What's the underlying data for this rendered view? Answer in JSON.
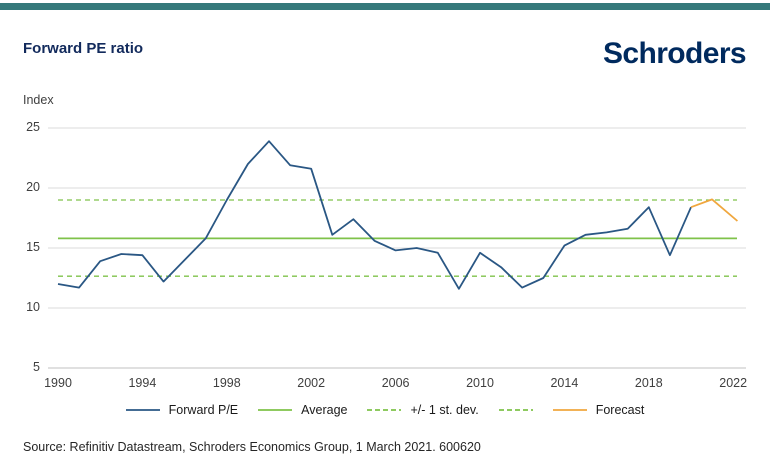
{
  "page": {
    "background": "#FFFFFF",
    "accent_bar_color": "#35797B"
  },
  "header": {
    "title": "Forward PE ratio",
    "title_color": "#122A5C",
    "logo_text": "Schroders",
    "logo_color": "#002A5E"
  },
  "footer": {
    "source": "Source: Refinitiv Datastream, Schroders Economics Group, 1 March 2021. 600620",
    "text_color": "#262626"
  },
  "colors": {
    "gridline": "#DBDBDB",
    "axis_line": "#C2C2C2",
    "tick_text": "#3F3F3F",
    "forward_pe_blue": "#2A5784",
    "average_green": "#7FC24A",
    "forecast_orange": "#F0A73E"
  },
  "chart_data": {
    "type": "line",
    "title": "Forward PE ratio",
    "ylabel": "Index",
    "xlabel": "",
    "ylim": [
      5,
      25
    ],
    "xlim": [
      1989.5,
      2023
    ],
    "grid": "horizontal",
    "legend_position": "bottom",
    "y_ticks": [
      25,
      20,
      15,
      10,
      5
    ],
    "x_ticks": [
      1990,
      1994,
      1998,
      2002,
      2006,
      2010,
      2014,
      2018,
      2022
    ],
    "series": [
      {
        "name": "Forward P/E",
        "style": "solid",
        "color": "#2A5784",
        "x": [
          1990,
          1991,
          1992,
          1993,
          1994,
          1995,
          1996,
          1997,
          1998,
          1999,
          2000,
          2001,
          2002,
          2003,
          2004,
          2005,
          2006,
          2007,
          2008,
          2009,
          2010,
          2011,
          2012,
          2013,
          2014,
          2015,
          2016,
          2017,
          2018,
          2019,
          2020
        ],
        "values": [
          12.0,
          11.7,
          13.9,
          14.5,
          14.4,
          12.2,
          14.0,
          15.8,
          19.0,
          22.0,
          23.9,
          21.9,
          21.6,
          16.1,
          17.4,
          15.6,
          14.8,
          15.0,
          14.6,
          11.6,
          14.6,
          13.4,
          11.7,
          12.5,
          15.2,
          16.1,
          16.3,
          16.6,
          18.4,
          14.4,
          18.4
        ]
      },
      {
        "name": "Forecast",
        "style": "solid",
        "color": "#F0A73E",
        "x": [
          2020,
          2021,
          2022.2
        ],
        "values": [
          18.4,
          19.05,
          17.25
        ]
      }
    ],
    "reference_lines": [
      {
        "name": "Average",
        "value": 15.8,
        "style": "solid",
        "color": "#7FC24A"
      },
      {
        "name": "+1 st. dev.",
        "value": 19.0,
        "style": "dashed",
        "color": "#7FC24A"
      },
      {
        "name": "-1 st. dev.",
        "value": 12.65,
        "style": "dashed",
        "color": "#7FC24A"
      }
    ]
  },
  "legend": {
    "items": [
      {
        "label": "Forward P/E",
        "color": "#2A5784",
        "dash": false
      },
      {
        "label": "Average",
        "color": "#7FC24A",
        "dash": false
      },
      {
        "label": "+/- 1 st. dev.",
        "color": "#7FC24A",
        "dash": true
      },
      {
        "label": "",
        "color": "#7FC24A",
        "dash": true
      },
      {
        "label": "Forecast",
        "color": "#F0A73E",
        "dash": false
      }
    ]
  }
}
